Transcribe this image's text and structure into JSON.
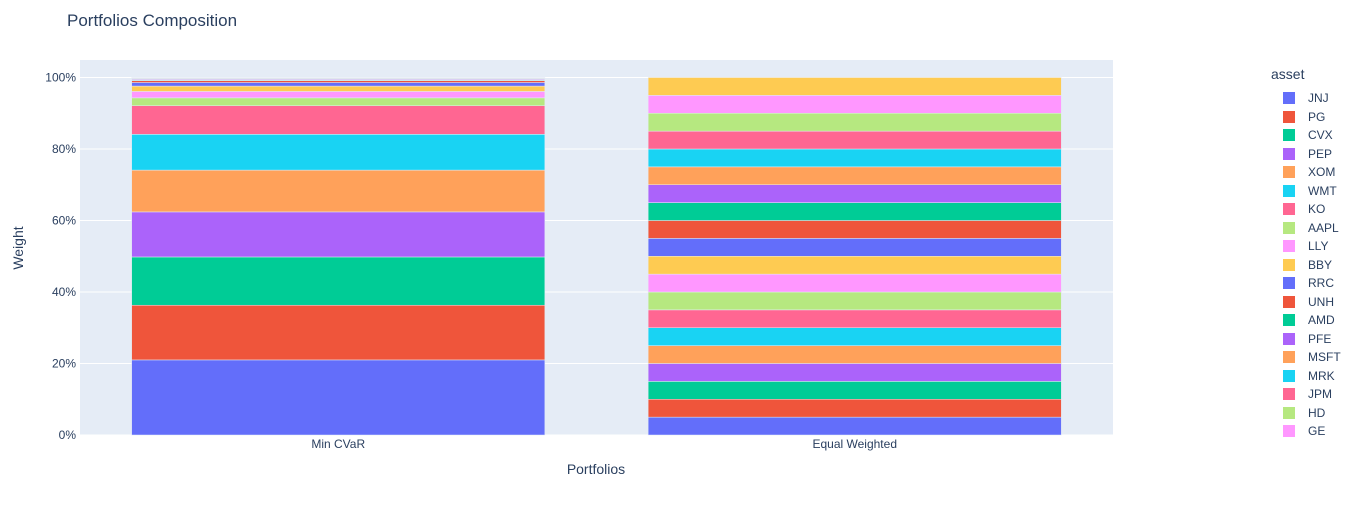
{
  "chart_data": {
    "type": "bar",
    "stacked": true,
    "title": "Portfolios Composition",
    "xlabel": "Portfolios",
    "ylabel": "Weight",
    "ylim": [
      0,
      1
    ],
    "y_tick_values": [
      0,
      0.2,
      0.4,
      0.6,
      0.8,
      1.0
    ],
    "y_tick_labels": [
      "0%",
      "20%",
      "40%",
      "60%",
      "80%",
      "100%"
    ],
    "categories": [
      "Min CVaR",
      "Equal Weighted"
    ],
    "legend_title": "asset",
    "legend_position": "right",
    "grid": true,
    "series": [
      {
        "name": "JNJ",
        "color": "#636efa",
        "values": [
          0.21,
          0.05
        ]
      },
      {
        "name": "PG",
        "color": "#ef553b",
        "values": [
          0.153,
          0.05
        ]
      },
      {
        "name": "CVX",
        "color": "#00cc96",
        "values": [
          0.135,
          0.05
        ]
      },
      {
        "name": "PEP",
        "color": "#ab63fa",
        "values": [
          0.126,
          0.05
        ]
      },
      {
        "name": "XOM",
        "color": "#ffa15a",
        "values": [
          0.117,
          0.05
        ]
      },
      {
        "name": "WMT",
        "color": "#19d3f3",
        "values": [
          0.1,
          0.05
        ]
      },
      {
        "name": "KO",
        "color": "#ff6692",
        "values": [
          0.08,
          0.05
        ]
      },
      {
        "name": "AAPL",
        "color": "#b6e880",
        "values": [
          0.022,
          0.05
        ]
      },
      {
        "name": "LLY",
        "color": "#ff97ff",
        "values": [
          0.018,
          0.05
        ]
      },
      {
        "name": "BBY",
        "color": "#fecb52",
        "values": [
          0.015,
          0.05
        ]
      },
      {
        "name": "RRC",
        "color": "#636efa",
        "values": [
          0.01,
          0.05
        ]
      },
      {
        "name": "UNH",
        "color": "#ef553b",
        "values": [
          0.005,
          0.05
        ]
      },
      {
        "name": "AMD",
        "color": "#00cc96",
        "values": [
          0.002,
          0.05
        ]
      },
      {
        "name": "PFE",
        "color": "#ab63fa",
        "values": [
          0.002,
          0.05
        ]
      },
      {
        "name": "MSFT",
        "color": "#ffa15a",
        "values": [
          0.002,
          0.05
        ]
      },
      {
        "name": "MRK",
        "color": "#19d3f3",
        "values": [
          0.001,
          0.05
        ]
      },
      {
        "name": "JPM",
        "color": "#ff6692",
        "values": [
          0.001,
          0.05
        ]
      },
      {
        "name": "HD",
        "color": "#b6e880",
        "values": [
          0.001,
          0.05
        ]
      },
      {
        "name": "GE",
        "color": "#ff97ff",
        "values": [
          0,
          0.05
        ]
      },
      {
        "name": "",
        "color": "#fecb52",
        "values": [
          0,
          0.05
        ]
      }
    ]
  }
}
